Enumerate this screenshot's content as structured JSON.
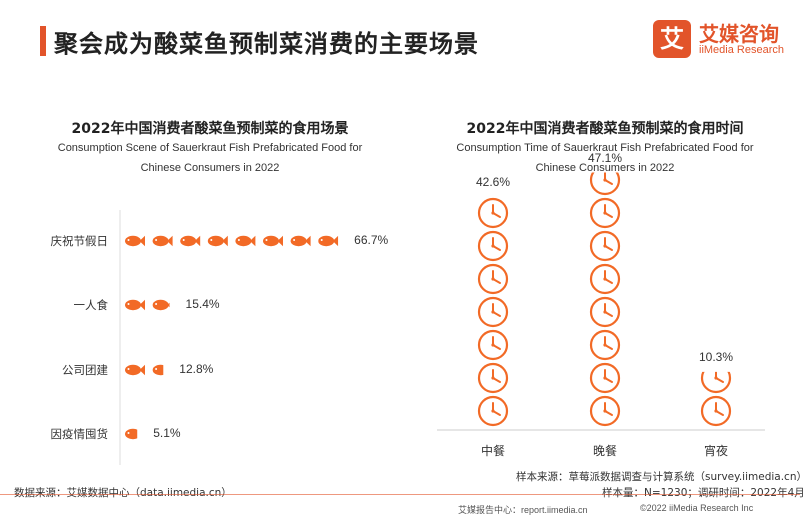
{
  "header": {
    "title": "聚会成为酸菜鱼预制菜消费的主要场景",
    "logo_mark": "艾",
    "logo_cn": "艾媒咨询",
    "logo_en": "iiMedia Research"
  },
  "chart_data": [
    {
      "type": "bar",
      "title": "2022年中国消费者酸菜鱼预制菜的食用场景",
      "subtitle_line1": "Consumption Scene of Sauerkraut Fish Prefabricated Food for",
      "subtitle_line2": "Chinese Consumers in 2022",
      "categories": [
        "庆祝节假日",
        "一人食",
        "公司团建",
        "因疫情囤货"
      ],
      "values": [
        66.7,
        15.4,
        12.8,
        5.1
      ],
      "value_labels": [
        "66.7%",
        "15.4%",
        "12.8%",
        "5.1%"
      ],
      "unit": "%",
      "icon": "fish-icon",
      "orientation": "horizontal",
      "percent_per_icon": 8.34,
      "color": "#f26a26"
    },
    {
      "type": "bar",
      "title": "2022年中国消费者酸菜鱼预制菜的食用时间",
      "subtitle_line1": "Consumption Time of Sauerkraut Fish Prefabricated Food for",
      "subtitle_line2": "Chinese Consumers in 2022",
      "categories": [
        "中餐",
        "晚餐",
        "宵夜"
      ],
      "values": [
        42.6,
        47.1,
        10.3
      ],
      "value_labels": [
        "42.6%",
        "47.1%",
        "10.3%"
      ],
      "unit": "%",
      "icon": "clock-icon",
      "orientation": "vertical",
      "percent_per_icon": 6.09,
      "color": "#f26a26"
    }
  ],
  "notes": {
    "data_source": "数据来源：艾媒数据中心（data.iimedia.cn）",
    "sample_source": "样本来源：草莓派数据调查与计算系统（survey.iimedia.cn）",
    "sample_size": "样本量：N=1230；调研时间：2022年4月"
  },
  "footer": {
    "report_center": "艾媒报告中心：report.iimedia.cn",
    "copyright": "©2022  iiMedia Research  Inc"
  }
}
